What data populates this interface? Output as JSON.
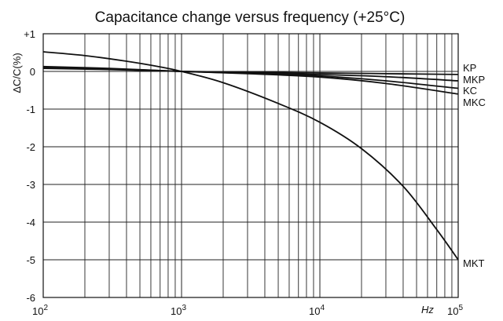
{
  "chart_data": {
    "type": "line",
    "title": "Capacitance change versus frequency (+25°C)",
    "ylabel": "ΔC/C(%)",
    "xlabel": "Hz",
    "x_scale": "log",
    "xlim": [
      100,
      100000
    ],
    "ylim": [
      -6,
      1
    ],
    "grid": true,
    "x_ticks": [
      {
        "value": 100,
        "base": "10",
        "exp": "2"
      },
      {
        "value": 1000,
        "base": "10",
        "exp": "3"
      },
      {
        "value": 10000,
        "base": "10",
        "exp": "4"
      },
      {
        "value": 100000,
        "base": "10",
        "exp": "5"
      }
    ],
    "y_ticks": [
      {
        "value": 1,
        "label": "+1"
      },
      {
        "value": 0,
        "label": "0"
      },
      {
        "value": -1,
        "label": "-1"
      },
      {
        "value": -2,
        "label": "-2"
      },
      {
        "value": -3,
        "label": "-3"
      },
      {
        "value": -4,
        "label": "-4"
      },
      {
        "value": -5,
        "label": "-5"
      },
      {
        "value": -6,
        "label": "-6"
      }
    ],
    "series": [
      {
        "name": "KP",
        "x": [
          100,
          300,
          1000,
          3000,
          10000,
          30000,
          100000
        ],
        "y": [
          0.08,
          0.05,
          0.0,
          -0.02,
          -0.04,
          -0.06,
          -0.08
        ]
      },
      {
        "name": "MKP",
        "x": [
          100,
          300,
          1000,
          3000,
          10000,
          30000,
          100000
        ],
        "y": [
          0.1,
          0.06,
          0.0,
          -0.04,
          -0.08,
          -0.14,
          -0.25
        ]
      },
      {
        "name": "KC",
        "x": [
          100,
          300,
          1000,
          3000,
          10000,
          30000,
          100000
        ],
        "y": [
          0.12,
          0.07,
          0.0,
          -0.05,
          -0.12,
          -0.25,
          -0.45
        ]
      },
      {
        "name": "MKC",
        "x": [
          100,
          300,
          1000,
          3000,
          10000,
          30000,
          100000
        ],
        "y": [
          0.13,
          0.08,
          0.0,
          -0.06,
          -0.15,
          -0.32,
          -0.6
        ]
      },
      {
        "name": "MKT",
        "x": [
          100,
          200,
          400,
          700,
          1000,
          2000,
          5000,
          10000,
          20000,
          40000,
          70000,
          100000
        ],
        "y": [
          0.52,
          0.42,
          0.27,
          0.12,
          0.0,
          -0.3,
          -0.85,
          -1.35,
          -2.05,
          -3.05,
          -4.2,
          -5.0
        ]
      }
    ]
  }
}
